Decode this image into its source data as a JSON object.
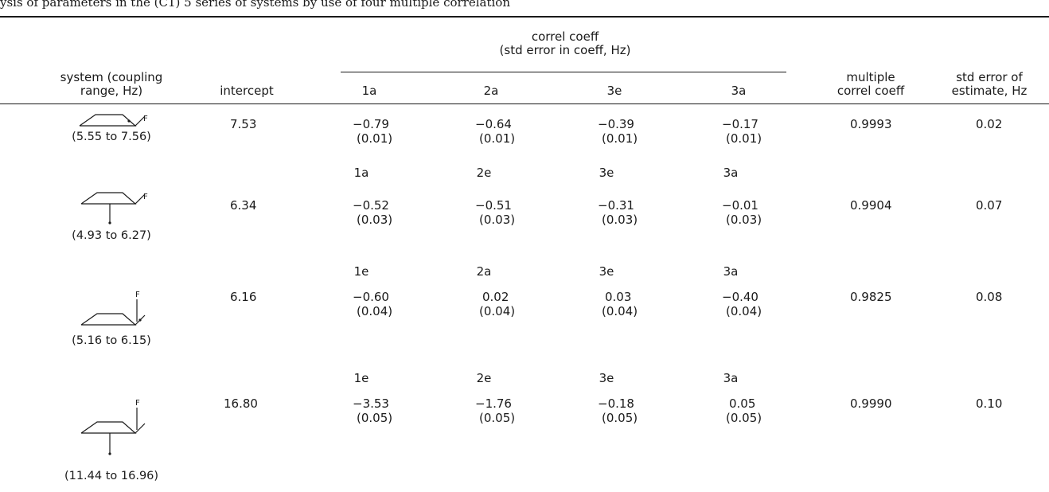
{
  "table": {
    "caption_fragment": "ysis of parameters in the (C1) 5 series of systems by use of four multiple correlation",
    "headers": {
      "system": [
        "system (coupling",
        "range, Hz)"
      ],
      "intercept": "intercept",
      "correl": [
        "correl coeff",
        "(std error in coeff, Hz)"
      ],
      "first_columns": [
        "1a",
        "2a",
        "3e",
        "3a"
      ],
      "multiple": [
        "multiple",
        "correl coeff"
      ],
      "stderr": [
        "std error of",
        "estimate, Hz"
      ]
    },
    "rows": [
      {
        "range": "(5.55 to 7.56)",
        "fluorine_label": "F",
        "intercept": "7.53",
        "coeffs": [
          {
            "value": "−0.79",
            "err": "(0.01)"
          },
          {
            "value": "−0.64",
            "err": "(0.01)"
          },
          {
            "value": "−0.39",
            "err": "(0.01)"
          },
          {
            "value": "−0.17",
            "err": "(0.01)"
          }
        ],
        "multiple": "0.9993",
        "stderr": "0.02"
      },
      {
        "labels": [
          "1a",
          "2e",
          "3e",
          "3a"
        ],
        "range": "(4.93 to 6.27)",
        "fluorine_label": "F",
        "intercept": "6.34",
        "coeffs": [
          {
            "value": "−0.52",
            "err": "(0.03)"
          },
          {
            "value": "−0.51",
            "err": "(0.03)"
          },
          {
            "value": "−0.31",
            "err": "(0.03)"
          },
          {
            "value": "−0.01",
            "err": "(0.03)"
          }
        ],
        "multiple": "0.9904",
        "stderr": "0.07"
      },
      {
        "labels": [
          "1e",
          "2a",
          "3e",
          "3a"
        ],
        "range": "(5.16 to 6.15)",
        "fluorine_label": "F",
        "intercept": "6.16",
        "coeffs": [
          {
            "value": "−0.60",
            "err": "(0.04)"
          },
          {
            "value": "0.02",
            "err": "(0.04)"
          },
          {
            "value": "0.03",
            "err": "(0.04)"
          },
          {
            "value": "−0.40",
            "err": "(0.04)"
          }
        ],
        "multiple": "0.9825",
        "stderr": "0.08"
      },
      {
        "labels": [
          "1e",
          "2e",
          "3e",
          "3a"
        ],
        "range": "(11.44 to 16.96)",
        "fluorine_label": "F",
        "intercept": "16.80",
        "coeffs": [
          {
            "value": "−3.53",
            "err": "(0.05)"
          },
          {
            "value": "−1.76",
            "err": "(0.05)"
          },
          {
            "value": "−0.18",
            "err": "(0.05)"
          },
          {
            "value": "0.05",
            "err": "(0.05)"
          }
        ],
        "multiple": "0.9990",
        "stderr": "0.10"
      }
    ]
  }
}
